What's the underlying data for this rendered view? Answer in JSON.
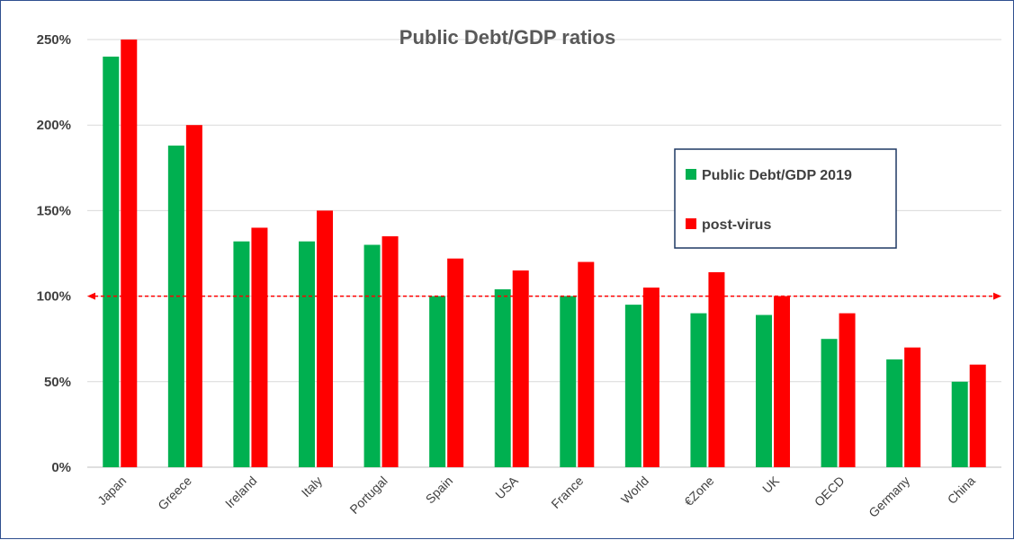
{
  "chart_data": {
    "type": "bar",
    "title": "Public Debt/GDP ratios",
    "xlabel": "",
    "ylabel": "",
    "categories": [
      "Japan",
      "Greece",
      "Ireland",
      "Italy",
      "Portugal",
      "Spain",
      "USA",
      "France",
      "World",
      "€Zone",
      "UK",
      "OECD",
      "Germany",
      "China"
    ],
    "series": [
      {
        "name": "Public Debt/GDP 2019",
        "color": "#00b050",
        "values": [
          240,
          188,
          132,
          132,
          130,
          100,
          104,
          100,
          95,
          90,
          89,
          75,
          63,
          50
        ]
      },
      {
        "name": "post-virus",
        "color": "#ff0000",
        "values": [
          250,
          200,
          140,
          150,
          135,
          122,
          115,
          120,
          105,
          114,
          100,
          90,
          70,
          60
        ]
      }
    ],
    "ylim": [
      0,
      250
    ],
    "yticks": [
      0,
      50,
      100,
      150,
      200,
      250
    ],
    "ytick_labels": [
      "0%",
      "50%",
      "100%",
      "150%",
      "200%",
      "250%"
    ],
    "grid": true,
    "legend_position": "right",
    "reference_line": {
      "value": 100,
      "style": "dashed",
      "color": "#ff0000",
      "arrows": "both"
    }
  }
}
